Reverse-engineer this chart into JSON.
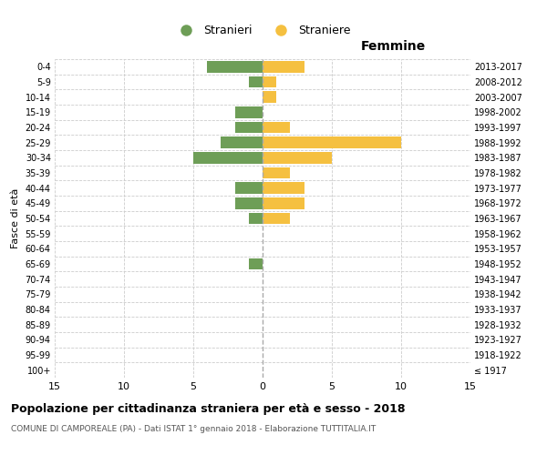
{
  "age_groups": [
    "100+",
    "95-99",
    "90-94",
    "85-89",
    "80-84",
    "75-79",
    "70-74",
    "65-69",
    "60-64",
    "55-59",
    "50-54",
    "45-49",
    "40-44",
    "35-39",
    "30-34",
    "25-29",
    "20-24",
    "15-19",
    "10-14",
    "5-9",
    "0-4"
  ],
  "birth_years": [
    "≤ 1917",
    "1918-1922",
    "1923-1927",
    "1928-1932",
    "1933-1937",
    "1938-1942",
    "1943-1947",
    "1948-1952",
    "1953-1957",
    "1958-1962",
    "1963-1967",
    "1968-1972",
    "1973-1977",
    "1978-1982",
    "1983-1987",
    "1988-1992",
    "1993-1997",
    "1998-2002",
    "2003-2007",
    "2008-2012",
    "2013-2017"
  ],
  "males": [
    0,
    0,
    0,
    0,
    0,
    0,
    0,
    1,
    0,
    0,
    1,
    2,
    2,
    0,
    5,
    3,
    2,
    2,
    0,
    1,
    4
  ],
  "females": [
    0,
    0,
    0,
    0,
    0,
    0,
    0,
    0,
    0,
    0,
    2,
    3,
    3,
    2,
    5,
    10,
    2,
    0,
    1,
    1,
    3
  ],
  "male_color": "#6e9e57",
  "female_color": "#f5c040",
  "background_color": "#ffffff",
  "grid_color": "#cccccc",
  "title": "Popolazione per cittadinanza straniera per età e sesso - 2018",
  "subtitle": "COMUNE DI CAMPOREALE (PA) - Dati ISTAT 1° gennaio 2018 - Elaborazione TUTTITALIA.IT",
  "legend_male": "Stranieri",
  "legend_female": "Straniere",
  "label_right": "Femmine",
  "ylabel_left": "Fasce di età",
  "xlim": 15,
  "bar_height": 0.75
}
